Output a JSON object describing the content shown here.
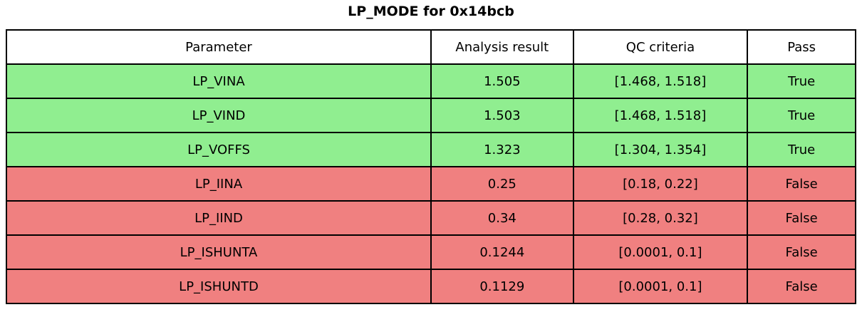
{
  "title": "LP_MODE for 0x14bcb",
  "chart_data": {
    "type": "table",
    "title": "LP_MODE for 0x14bcb",
    "columns": [
      "Parameter",
      "Analysis result",
      "QC criteria",
      "Pass"
    ],
    "rows": [
      [
        "LP_VINA",
        "1.505",
        "[1.468, 1.518]",
        "True"
      ],
      [
        "LP_VIND",
        "1.503",
        "[1.468, 1.518]",
        "True"
      ],
      [
        "LP_VOFFS",
        "1.323",
        "[1.304, 1.354]",
        "True"
      ],
      [
        "LP_IINA",
        "0.25",
        "[0.18, 0.22]",
        "False"
      ],
      [
        "LP_IIND",
        "0.34",
        "[0.28, 0.32]",
        "False"
      ],
      [
        "LP_ISHUNTA",
        "0.1244",
        "[0.0001, 0.1]",
        "False"
      ],
      [
        "LP_ISHUNTD",
        "0.1129",
        "[0.0001, 0.1]",
        "False"
      ]
    ],
    "layout": {
      "legend": "none",
      "grid": "full-borders",
      "pass_rows_color_meaning": "True",
      "fail_rows_color_meaning": "False"
    }
  },
  "colors": {
    "pass_green": "#90EE90",
    "fail_red": "#F08080",
    "header_bg": "#FFFFFF",
    "border": "#000000",
    "text": "#000000"
  }
}
